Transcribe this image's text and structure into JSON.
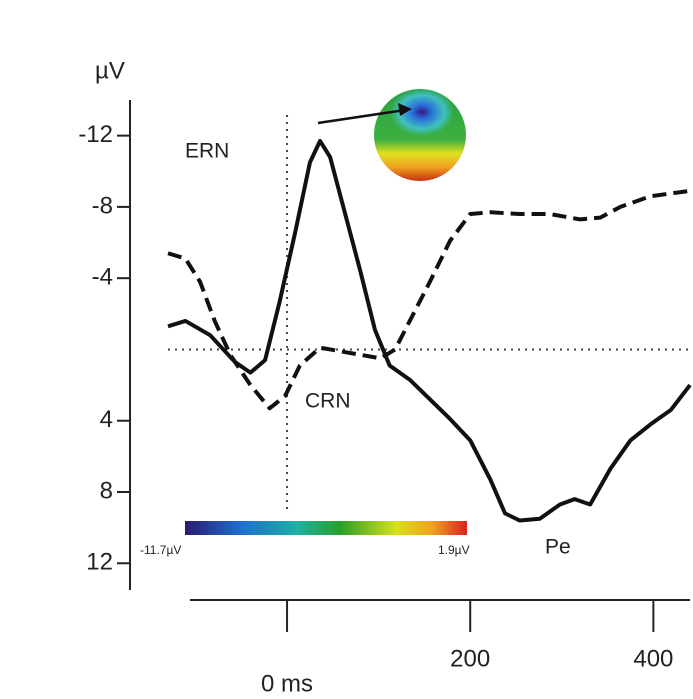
{
  "chart_data": {
    "type": "line",
    "ylabel": "µV",
    "xlim": [
      -130,
      440
    ],
    "ylim": [
      -14,
      13.5
    ],
    "y_inverted": true,
    "xticks": [
      {
        "value": 0,
        "label": "0 ms"
      },
      200,
      400
    ],
    "yticks": [
      -12,
      -8,
      -4,
      4,
      8,
      12
    ],
    "zero_lines": true,
    "annotations": [
      "ERN",
      "CRN",
      "Pe"
    ],
    "colorbar": {
      "min_label": "-11.7µV",
      "max_label": "1.9µV"
    },
    "series": [
      {
        "color": "#111",
        "dashed": false,
        "x": [
          -130,
          -111,
          -84,
          -57,
          -40,
          -24,
          -8,
          9,
          25,
          36,
          47,
          63,
          80,
          96,
          112,
          134,
          156,
          178,
          200,
          222,
          238,
          254,
          276,
          298,
          314,
          331,
          353,
          375,
          397,
          419,
          440
        ],
        "values": [
          -1.3,
          -1.6,
          -0.8,
          0.7,
          1.3,
          0.6,
          -2.7,
          -6.6,
          -10.5,
          -11.7,
          -10.8,
          -7.7,
          -4.4,
          -1.1,
          0.9,
          1.7,
          2.8,
          3.9,
          5.1,
          7.3,
          9.2,
          9.6,
          9.5,
          8.7,
          8.4,
          8.7,
          6.7,
          5.1,
          4.2,
          3.4,
          2.0
        ]
      },
      {
        "color": "#111",
        "dashed": true,
        "x": [
          -130,
          -111,
          -95,
          -79,
          -62,
          -40,
          -19,
          -2,
          14,
          36,
          58,
          80,
          102,
          118,
          134,
          156,
          178,
          200,
          222,
          254,
          287,
          320,
          342,
          364,
          397,
          440
        ],
        "values": [
          -5.4,
          -5.1,
          -3.8,
          -1.6,
          0.3,
          2.0,
          3.3,
          2.6,
          0.9,
          -0.1,
          0.1,
          0.3,
          0.5,
          0.0,
          -1.6,
          -3.8,
          -6.1,
          -7.6,
          -7.7,
          -7.6,
          -7.6,
          -7.3,
          -7.4,
          -8.0,
          -8.6,
          -8.9
        ]
      }
    ]
  }
}
